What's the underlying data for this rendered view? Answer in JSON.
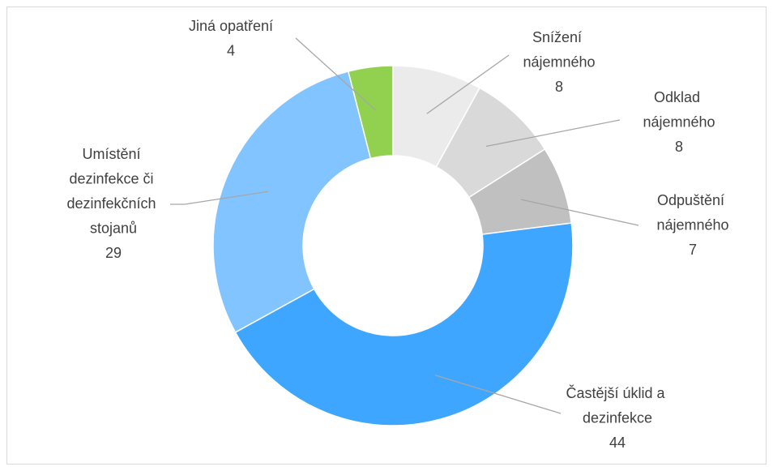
{
  "chart_data": {
    "type": "donut",
    "categories": [
      "Snížení nájemného",
      "Odklad nájemného",
      "Odpuštění nájemného",
      "Častější úklid a dezinfekce",
      "Umístění dezinfekce či dezinfekčních stojanů",
      "Jiná opatření"
    ],
    "values": [
      8,
      8,
      7,
      44,
      29,
      4
    ],
    "colors": [
      "#ebebeb",
      "#d9d9d9",
      "#c0c0c0",
      "#3fa6ff",
      "#82c4ff",
      "#92d050"
    ]
  }
}
